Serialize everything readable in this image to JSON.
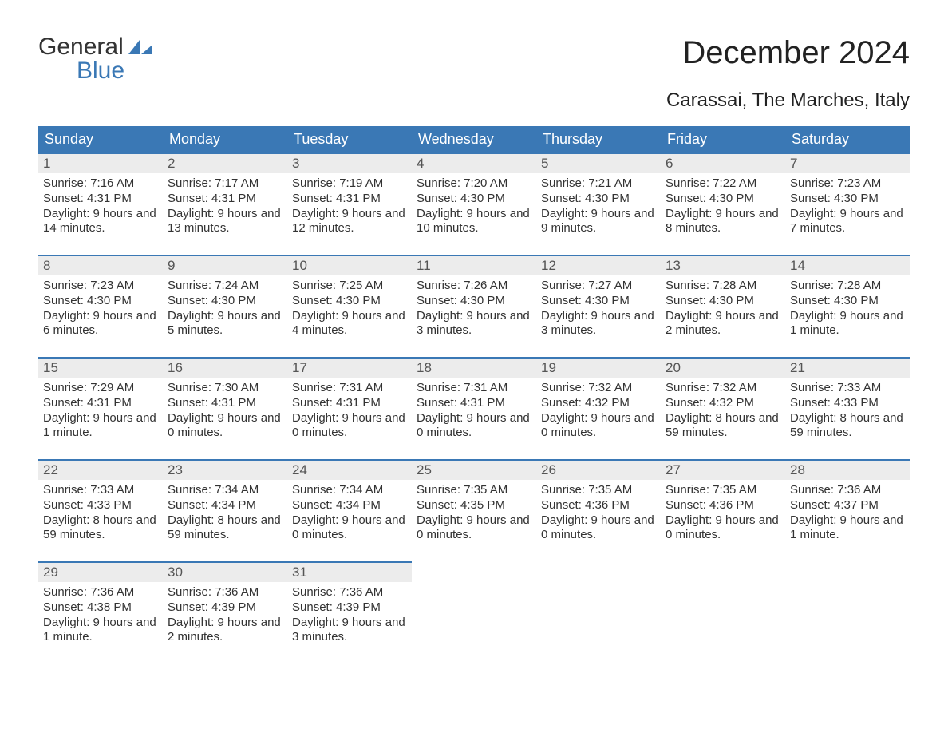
{
  "brand": {
    "line1": "General",
    "line2": "Blue",
    "accent_color": "#3a78b5"
  },
  "header": {
    "title": "December 2024",
    "location": "Carassai, The Marches, Italy"
  },
  "calendar": {
    "background_color": "#ffffff",
    "header_bg": "#3a78b5",
    "header_fg": "#ffffff",
    "daynum_bg": "#ececec",
    "daynum_border": "#3a78b5",
    "text_color": "#333333",
    "font_family": "Arial",
    "title_fontsize": 40,
    "subtitle_fontsize": 24,
    "dayheader_fontsize": 18,
    "body_fontsize": 15,
    "day_names": [
      "Sunday",
      "Monday",
      "Tuesday",
      "Wednesday",
      "Thursday",
      "Friday",
      "Saturday"
    ],
    "weeks": [
      [
        {
          "n": "1",
          "sunrise": "Sunrise: 7:16 AM",
          "sunset": "Sunset: 4:31 PM",
          "daylight": "Daylight: 9 hours and 14 minutes."
        },
        {
          "n": "2",
          "sunrise": "Sunrise: 7:17 AM",
          "sunset": "Sunset: 4:31 PM",
          "daylight": "Daylight: 9 hours and 13 minutes."
        },
        {
          "n": "3",
          "sunrise": "Sunrise: 7:19 AM",
          "sunset": "Sunset: 4:31 PM",
          "daylight": "Daylight: 9 hours and 12 minutes."
        },
        {
          "n": "4",
          "sunrise": "Sunrise: 7:20 AM",
          "sunset": "Sunset: 4:30 PM",
          "daylight": "Daylight: 9 hours and 10 minutes."
        },
        {
          "n": "5",
          "sunrise": "Sunrise: 7:21 AM",
          "sunset": "Sunset: 4:30 PM",
          "daylight": "Daylight: 9 hours and 9 minutes."
        },
        {
          "n": "6",
          "sunrise": "Sunrise: 7:22 AM",
          "sunset": "Sunset: 4:30 PM",
          "daylight": "Daylight: 9 hours and 8 minutes."
        },
        {
          "n": "7",
          "sunrise": "Sunrise: 7:23 AM",
          "sunset": "Sunset: 4:30 PM",
          "daylight": "Daylight: 9 hours and 7 minutes."
        }
      ],
      [
        {
          "n": "8",
          "sunrise": "Sunrise: 7:23 AM",
          "sunset": "Sunset: 4:30 PM",
          "daylight": "Daylight: 9 hours and 6 minutes."
        },
        {
          "n": "9",
          "sunrise": "Sunrise: 7:24 AM",
          "sunset": "Sunset: 4:30 PM",
          "daylight": "Daylight: 9 hours and 5 minutes."
        },
        {
          "n": "10",
          "sunrise": "Sunrise: 7:25 AM",
          "sunset": "Sunset: 4:30 PM",
          "daylight": "Daylight: 9 hours and 4 minutes."
        },
        {
          "n": "11",
          "sunrise": "Sunrise: 7:26 AM",
          "sunset": "Sunset: 4:30 PM",
          "daylight": "Daylight: 9 hours and 3 minutes."
        },
        {
          "n": "12",
          "sunrise": "Sunrise: 7:27 AM",
          "sunset": "Sunset: 4:30 PM",
          "daylight": "Daylight: 9 hours and 3 minutes."
        },
        {
          "n": "13",
          "sunrise": "Sunrise: 7:28 AM",
          "sunset": "Sunset: 4:30 PM",
          "daylight": "Daylight: 9 hours and 2 minutes."
        },
        {
          "n": "14",
          "sunrise": "Sunrise: 7:28 AM",
          "sunset": "Sunset: 4:30 PM",
          "daylight": "Daylight: 9 hours and 1 minute."
        }
      ],
      [
        {
          "n": "15",
          "sunrise": "Sunrise: 7:29 AM",
          "sunset": "Sunset: 4:31 PM",
          "daylight": "Daylight: 9 hours and 1 minute."
        },
        {
          "n": "16",
          "sunrise": "Sunrise: 7:30 AM",
          "sunset": "Sunset: 4:31 PM",
          "daylight": "Daylight: 9 hours and 0 minutes."
        },
        {
          "n": "17",
          "sunrise": "Sunrise: 7:31 AM",
          "sunset": "Sunset: 4:31 PM",
          "daylight": "Daylight: 9 hours and 0 minutes."
        },
        {
          "n": "18",
          "sunrise": "Sunrise: 7:31 AM",
          "sunset": "Sunset: 4:31 PM",
          "daylight": "Daylight: 9 hours and 0 minutes."
        },
        {
          "n": "19",
          "sunrise": "Sunrise: 7:32 AM",
          "sunset": "Sunset: 4:32 PM",
          "daylight": "Daylight: 9 hours and 0 minutes."
        },
        {
          "n": "20",
          "sunrise": "Sunrise: 7:32 AM",
          "sunset": "Sunset: 4:32 PM",
          "daylight": "Daylight: 8 hours and 59 minutes."
        },
        {
          "n": "21",
          "sunrise": "Sunrise: 7:33 AM",
          "sunset": "Sunset: 4:33 PM",
          "daylight": "Daylight: 8 hours and 59 minutes."
        }
      ],
      [
        {
          "n": "22",
          "sunrise": "Sunrise: 7:33 AM",
          "sunset": "Sunset: 4:33 PM",
          "daylight": "Daylight: 8 hours and 59 minutes."
        },
        {
          "n": "23",
          "sunrise": "Sunrise: 7:34 AM",
          "sunset": "Sunset: 4:34 PM",
          "daylight": "Daylight: 8 hours and 59 minutes."
        },
        {
          "n": "24",
          "sunrise": "Sunrise: 7:34 AM",
          "sunset": "Sunset: 4:34 PM",
          "daylight": "Daylight: 9 hours and 0 minutes."
        },
        {
          "n": "25",
          "sunrise": "Sunrise: 7:35 AM",
          "sunset": "Sunset: 4:35 PM",
          "daylight": "Daylight: 9 hours and 0 minutes."
        },
        {
          "n": "26",
          "sunrise": "Sunrise: 7:35 AM",
          "sunset": "Sunset: 4:36 PM",
          "daylight": "Daylight: 9 hours and 0 minutes."
        },
        {
          "n": "27",
          "sunrise": "Sunrise: 7:35 AM",
          "sunset": "Sunset: 4:36 PM",
          "daylight": "Daylight: 9 hours and 0 minutes."
        },
        {
          "n": "28",
          "sunrise": "Sunrise: 7:36 AM",
          "sunset": "Sunset: 4:37 PM",
          "daylight": "Daylight: 9 hours and 1 minute."
        }
      ],
      [
        {
          "n": "29",
          "sunrise": "Sunrise: 7:36 AM",
          "sunset": "Sunset: 4:38 PM",
          "daylight": "Daylight: 9 hours and 1 minute."
        },
        {
          "n": "30",
          "sunrise": "Sunrise: 7:36 AM",
          "sunset": "Sunset: 4:39 PM",
          "daylight": "Daylight: 9 hours and 2 minutes."
        },
        {
          "n": "31",
          "sunrise": "Sunrise: 7:36 AM",
          "sunset": "Sunset: 4:39 PM",
          "daylight": "Daylight: 9 hours and 3 minutes."
        },
        null,
        null,
        null,
        null
      ]
    ]
  }
}
